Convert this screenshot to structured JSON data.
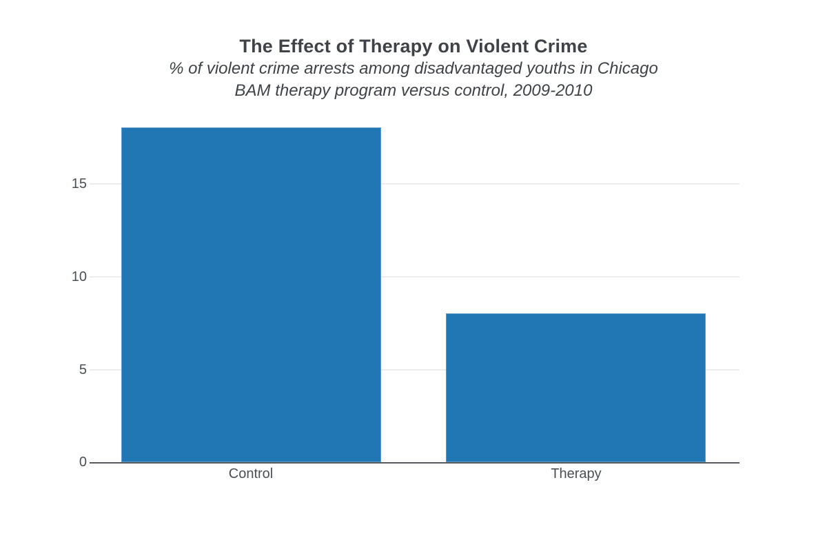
{
  "header": {
    "title": "The Effect of Therapy on Violent Crime",
    "subtitle_line1": "% of violent crime arrests among disadvantaged youths in Chicago",
    "subtitle_line2": "BAM therapy program versus control, 2009-2010"
  },
  "chart_data": {
    "type": "bar",
    "title": "The Effect of Therapy on Violent Crime",
    "subtitle": "% of violent crime arrests among disadvantaged youths in Chicago; BAM therapy program versus control, 2009-2010",
    "categories": [
      "Control",
      "Therapy"
    ],
    "values": [
      18,
      8
    ],
    "xlabel": "",
    "ylabel": "",
    "yticks": [
      0,
      5,
      10,
      15
    ],
    "ylim": [
      0,
      18.1
    ],
    "grid": "horizontal-light",
    "legend": "none",
    "bar_color": "#2077b4"
  },
  "colors": {
    "bar": "#2077b4",
    "axis_line": "#55585c",
    "gridline": "#ececec",
    "title_text": "#3f4347",
    "tick_text": "#4b4f54",
    "background": "#ffffff"
  }
}
